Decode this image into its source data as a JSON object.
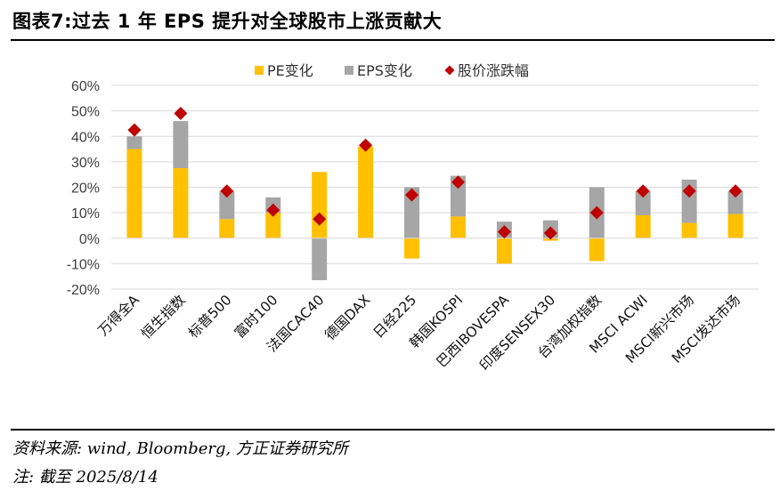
{
  "header": {
    "title": "图表7:过去 1 年 EPS 提升对全球股市上涨贡献大"
  },
  "footer": {
    "source": "资料来源: wind, Bloomberg, 方正证券研究所",
    "note": "注: 截至 2025/8/14"
  },
  "colors": {
    "pe": "#FFC000",
    "eps": "#A6A6A6",
    "price": "#C00000",
    "grid": "#D9D9D9"
  },
  "chart_data": {
    "type": "bar",
    "stacked": true,
    "title": "",
    "xlabel": "",
    "ylabel": "",
    "ylim": [
      -20,
      60
    ],
    "yticks": [
      -20,
      -10,
      0,
      10,
      20,
      30,
      40,
      50,
      60
    ],
    "ytick_labels": [
      "-20%",
      "-10%",
      "0%",
      "10%",
      "20%",
      "30%",
      "40%",
      "50%",
      "60%"
    ],
    "grid": true,
    "legend_position": "top",
    "categories": [
      "万得全A",
      "恒生指数",
      "标普500",
      "富时100",
      "法国CAC40",
      "德国DAX",
      "日经225",
      "韩国KOSPI",
      "巴西IBOVESPA",
      "印度SENSEX30",
      "台湾加权指数",
      "MSCI ACWI",
      "MSCI新兴市场",
      "MSCI发达市场"
    ],
    "series": [
      {
        "name": "PE变化",
        "kind": "bar",
        "values": [
          35.0,
          27.5,
          7.5,
          10.0,
          26.0,
          36.0,
          -8.0,
          8.5,
          -10.0,
          -1.0,
          -9.0,
          9.0,
          6.0,
          9.5
        ]
      },
      {
        "name": "EPS变化",
        "kind": "bar",
        "values": [
          5.0,
          18.5,
          11.0,
          6.0,
          -16.5,
          0.0,
          20.0,
          16.0,
          6.5,
          7.0,
          20.0,
          9.5,
          17.0,
          9.0
        ]
      },
      {
        "name": "股价涨跌幅",
        "kind": "marker",
        "values": [
          42.5,
          49.0,
          18.5,
          11.0,
          7.5,
          36.5,
          17.0,
          22.0,
          2.5,
          2.0,
          10.0,
          18.5,
          18.5,
          18.5
        ]
      }
    ]
  }
}
